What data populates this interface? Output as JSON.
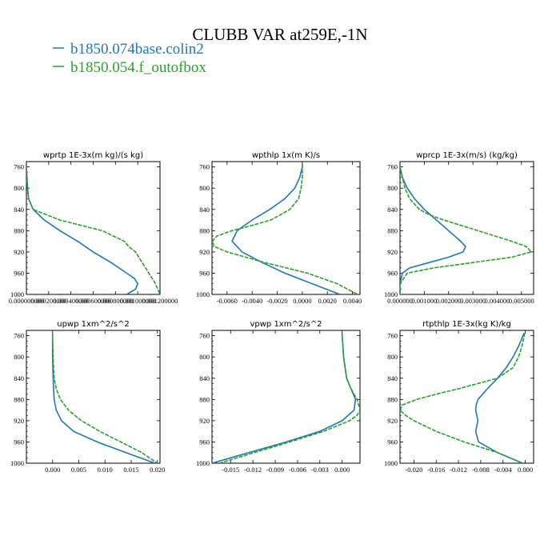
{
  "title": "CLUBB VAR at259E,-1N",
  "legend": [
    {
      "label": "b1850.074base.colin2",
      "color": "#1f77b4"
    },
    {
      "label": "b1850.054.f_outofbox",
      "color": "#2ca02c"
    }
  ],
  "chart_data": [
    {
      "type": "line",
      "title": "wprtp   1E-3x(m kg)/(s kg)",
      "ylim": [
        1000,
        750
      ],
      "yticks": [
        760,
        800,
        840,
        880,
        920,
        960,
        1000
      ],
      "xlim": [
        0.0,
        1.2e-06
      ],
      "xticks": [
        0.0,
        2e-07,
        4e-07,
        6e-07,
        8e-07,
        1e-06,
        1.2e-06
      ],
      "xtick_labels": [
        "0.000000000",
        "0.000200000",
        "0.000400000",
        "0.000600000",
        "0.000800000",
        "0.001000000",
        "0.001200000"
      ],
      "series": [
        {
          "name": "b1850.074base.colin2",
          "y": [
            755,
            760,
            780,
            800,
            820,
            840,
            860,
            880,
            900,
            920,
            940,
            960,
            970,
            980,
            990,
            1000
          ],
          "x": [
            0.0,
            0.0,
            5e-09,
            1e-08,
            2e-08,
            6e-08,
            1.6e-07,
            3e-07,
            4.6e-07,
            6e-07,
            7.6e-07,
            9e-07,
            9.7e-07,
            1e-06,
            9.8e-07,
            9e-07
          ]
        },
        {
          "name": "b1850.054.f_outofbox",
          "y": [
            755,
            760,
            780,
            800,
            820,
            840,
            860,
            880,
            900,
            910,
            920,
            940,
            960,
            980,
            1000
          ],
          "x": [
            0.0,
            0.0,
            0.0,
            1e-08,
            2e-08,
            6e-08,
            3e-07,
            6.8e-07,
            8.8e-07,
            9.2e-07,
            9.8e-07,
            1.04e-06,
            1.1e-06,
            1.16e-06,
            1.2e-06
          ]
        }
      ]
    },
    {
      "type": "line",
      "title": "wpthlp   1x(m K)/s",
      "ylim": [
        1000,
        750
      ],
      "yticks": [
        760,
        800,
        840,
        880,
        920,
        960,
        1000
      ],
      "xlim": [
        -0.0072,
        0.0046
      ],
      "xticks": [
        -0.006,
        -0.004,
        -0.002,
        0.0,
        0.002,
        0.004
      ],
      "xtick_labels": [
        "-0.0060",
        "-0.0040",
        "-0.0020",
        "0.0000",
        "0.0020",
        "0.0040"
      ],
      "series": [
        {
          "name": "b1850.074base.colin2",
          "y": [
            755,
            760,
            780,
            800,
            820,
            840,
            860,
            880,
            900,
            920,
            940,
            960,
            980,
            1000
          ],
          "x": [
            0.0,
            0.0,
            -0.0002,
            -0.0006,
            -0.0014,
            -0.0026,
            -0.004,
            -0.0052,
            -0.0056,
            -0.0048,
            -0.0032,
            -0.0014,
            0.0008,
            0.003
          ]
        },
        {
          "name": "b1850.054.f_outofbox",
          "y": [
            755,
            760,
            780,
            800,
            820,
            840,
            860,
            870,
            880,
            890,
            900,
            910,
            920,
            940,
            960,
            980,
            1000
          ],
          "x": [
            0.0,
            0.0,
            0.0,
            -0.0001,
            -0.0003,
            -0.001,
            -0.0025,
            -0.004,
            -0.0056,
            -0.0068,
            -0.0072,
            -0.007,
            -0.006,
            -0.003,
            0.0004,
            0.0028,
            0.0044
          ]
        }
      ]
    },
    {
      "type": "line",
      "title": "wprcp   1E-3x(m/s) (kg/kg)",
      "ylim": [
        1000,
        750
      ],
      "yticks": [
        760,
        800,
        840,
        880,
        920,
        960,
        1000
      ],
      "xlim": [
        0.0,
        0.0055
      ],
      "xticks": [
        0.0,
        0.001,
        0.002,
        0.003,
        0.004,
        0.005
      ],
      "xtick_labels": [
        "0.000000",
        "0.001000",
        "0.002000",
        "0.003000",
        "0.004000",
        "0.005000"
      ],
      "series": [
        {
          "name": "b1850.074base.colin2",
          "y": [
            755,
            760,
            780,
            800,
            820,
            840,
            860,
            880,
            900,
            910,
            920,
            930,
            940,
            950,
            960,
            980,
            1000
          ],
          "x": [
            0.0,
            0.0,
            0.0001,
            0.0003,
            0.0006,
            0.001,
            0.0015,
            0.002,
            0.0025,
            0.0027,
            0.0026,
            0.002,
            0.0012,
            0.0004,
            0.0001,
            0.0,
            0.0
          ]
        },
        {
          "name": "b1850.054.f_outofbox",
          "y": [
            755,
            760,
            780,
            800,
            820,
            840,
            850,
            860,
            880,
            900,
            910,
            920,
            930,
            940,
            950,
            960,
            980,
            1000
          ],
          "x": [
            0.0,
            0.0,
            0.0001,
            0.0002,
            0.0004,
            0.0008,
            0.0012,
            0.0018,
            0.0032,
            0.0046,
            0.0052,
            0.0054,
            0.0046,
            0.003,
            0.0014,
            0.0003,
            0.0,
            0.0
          ]
        }
      ]
    },
    {
      "type": "line",
      "title": "upwp   1xm^2/s^2",
      "ylim": [
        1000,
        750
      ],
      "yticks": [
        760,
        800,
        840,
        880,
        920,
        960,
        1000
      ],
      "xlim": [
        -0.005,
        0.0205
      ],
      "xticks": [
        0.0,
        0.005,
        0.01,
        0.015,
        0.02
      ],
      "xtick_labels": [
        "0.000",
        "0.005",
        "0.010",
        "0.015",
        "0.020"
      ],
      "series": [
        {
          "name": "b1850.074base.colin2",
          "y": [
            755,
            760,
            800,
            840,
            880,
            900,
            920,
            940,
            960,
            980,
            1000
          ],
          "x": [
            0.0,
            0.0,
            0.0,
            0.0001,
            0.0003,
            0.0007,
            0.0017,
            0.004,
            0.0085,
            0.014,
            0.0195
          ]
        },
        {
          "name": "b1850.054.f_outofbox",
          "y": [
            755,
            760,
            800,
            840,
            860,
            880,
            900,
            920,
            940,
            960,
            980,
            1000
          ],
          "x": [
            0.0,
            0.0,
            0.0001,
            0.0003,
            0.0007,
            0.0015,
            0.003,
            0.0055,
            0.009,
            0.013,
            0.017,
            0.02
          ]
        }
      ]
    },
    {
      "type": "line",
      "title": "vpwp   1xm^2/s^2",
      "ylim": [
        1000,
        750
      ],
      "yticks": [
        760,
        800,
        840,
        880,
        920,
        960,
        1000
      ],
      "xlim": [
        -0.0175,
        0.0024
      ],
      "xticks": [
        -0.015,
        -0.012,
        -0.009,
        -0.006,
        -0.003,
        0.0
      ],
      "xtick_labels": [
        "-0.015",
        "-0.012",
        "-0.009",
        "-0.006",
        "-0.003",
        "0.000"
      ],
      "series": [
        {
          "name": "b1850.074base.colin2",
          "y": [
            755,
            760,
            800,
            840,
            860,
            880,
            900,
            920,
            940,
            960,
            980,
            1000
          ],
          "x": [
            0.0,
            0.0,
            0.0002,
            0.0006,
            0.0012,
            0.0018,
            0.0016,
            0.0,
            -0.003,
            -0.0075,
            -0.0125,
            -0.0175
          ]
        },
        {
          "name": "b1850.054.f_outofbox",
          "y": [
            755,
            760,
            800,
            840,
            860,
            880,
            900,
            910,
            920,
            940,
            960,
            980,
            1000
          ],
          "x": [
            0.0,
            0.0,
            0.0002,
            0.0006,
            0.0012,
            0.002,
            0.0024,
            0.002,
            0.001,
            -0.0025,
            -0.007,
            -0.0118,
            -0.0165
          ]
        }
      ]
    },
    {
      "type": "line",
      "title": "rtpthlp   1E-3x(kg K)/kg",
      "ylim": [
        1000,
        750
      ],
      "yticks": [
        760,
        800,
        840,
        880,
        920,
        960,
        1000
      ],
      "xlim": [
        -0.0225,
        0.0015
      ],
      "xticks": [
        -0.02,
        -0.016,
        -0.012,
        -0.008,
        -0.004,
        0.0
      ],
      "xtick_labels": [
        "-0.020",
        "-0.016",
        "-0.012",
        "-0.008",
        "-0.004",
        "0.000"
      ],
      "series": [
        {
          "name": "b1850.074base.colin2",
          "y": [
            755,
            760,
            780,
            800,
            820,
            840,
            860,
            880,
            890,
            900,
            920,
            940,
            960,
            980,
            1000
          ],
          "x": [
            -0.0002,
            -0.0004,
            -0.0012,
            -0.0022,
            -0.0034,
            -0.005,
            -0.0068,
            -0.0085,
            -0.0088,
            -0.0089,
            -0.0085,
            -0.0089,
            -0.0084,
            -0.005,
            -0.0005
          ]
        },
        {
          "name": "b1850.054.f_outofbox",
          "y": [
            755,
            760,
            780,
            800,
            820,
            840,
            860,
            870,
            880,
            890,
            900,
            910,
            920,
            940,
            960,
            980,
            1000
          ],
          "x": [
            -0.0001,
            -0.0002,
            -0.0006,
            -0.0012,
            -0.0022,
            -0.005,
            -0.012,
            -0.016,
            -0.0195,
            -0.022,
            -0.0225,
            -0.0215,
            -0.02,
            -0.016,
            -0.011,
            -0.005,
            -0.0005
          ]
        }
      ]
    }
  ]
}
